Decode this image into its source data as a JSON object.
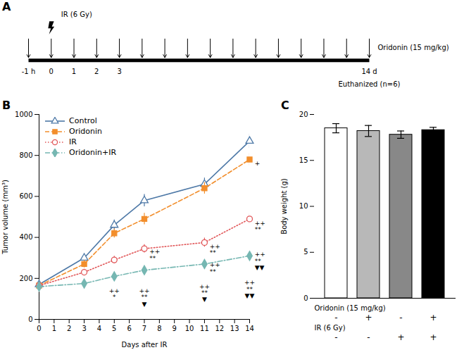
{
  "chart_data": [
    {
      "type": "timeline",
      "title": "A",
      "xlim": [
        -1,
        14
      ],
      "xticks": [
        {
          "value": -1,
          "label": "-1 h"
        },
        0,
        1,
        2,
        3,
        {
          "value": 14,
          "label": "14 d"
        }
      ],
      "series": [
        {
          "name": "Oridonin (15 mg/kg)",
          "marker": "arrow",
          "x": [
            -1,
            0,
            1,
            2,
            3,
            4,
            5,
            6,
            7,
            8,
            9,
            10,
            11,
            12,
            13,
            14
          ]
        },
        {
          "name": "IR (6 Gy)",
          "marker": "bolt",
          "x": [
            0
          ]
        }
      ],
      "annotations": [
        {
          "text": "Euthanized (n=6)",
          "x": 14
        }
      ]
    },
    {
      "type": "line",
      "title": "B",
      "xlabel": "Days after IR",
      "ylabel": "Tumor volume (mm³)",
      "xlim": [
        0,
        14
      ],
      "ylim": [
        0,
        1000
      ],
      "xticks": [
        0,
        1,
        2,
        3,
        4,
        5,
        6,
        7,
        8,
        9,
        10,
        11,
        12,
        13,
        14
      ],
      "yticks": [
        0,
        200,
        400,
        600,
        800,
        1000
      ],
      "x": [
        0,
        3,
        5,
        7,
        11,
        14
      ],
      "series": [
        {
          "name": "Control",
          "marker": "triangle-open",
          "line_style": "solid",
          "values": [
            170,
            300,
            460,
            580,
            660,
            870
          ],
          "errors": [
            10,
            20,
            25,
            30,
            30,
            35
          ]
        },
        {
          "name": "Oridonin",
          "marker": "square",
          "line_style": "dashed",
          "values": [
            165,
            270,
            420,
            490,
            640,
            780
          ],
          "errors": [
            10,
            18,
            22,
            28,
            28,
            30
          ]
        },
        {
          "name": "IR",
          "marker": "circle-open",
          "line_style": "dotted",
          "values": [
            165,
            230,
            290,
            345,
            375,
            490
          ],
          "errors": [
            10,
            15,
            18,
            20,
            22,
            25
          ]
        },
        {
          "name": "Oridonin+IR",
          "marker": "diamond",
          "line_style": "dashdot",
          "values": [
            160,
            175,
            210,
            240,
            270,
            310
          ],
          "errors": [
            10,
            10,
            12,
            15,
            18,
            20
          ]
        }
      ],
      "legend": "upper left",
      "grid": false,
      "annotations": [
        {
          "text": "*",
          "x": 5,
          "y": 143
        },
        {
          "text": "++",
          "x": 5,
          "y": 152
        },
        {
          "text": "▼",
          "x": 7,
          "y": 127
        },
        {
          "text": "**",
          "x": 7,
          "y": 140
        },
        {
          "text": "++",
          "x": 7,
          "y": 153
        },
        {
          "text": "▼",
          "x": 11,
          "y": 148
        },
        {
          "text": "**",
          "x": 11,
          "y": 161
        },
        {
          "text": "++",
          "x": 11,
          "y": 174
        },
        {
          "text": "▼▼",
          "x": 14,
          "y": 163
        },
        {
          "text": "**",
          "x": 14,
          "y": 177
        },
        {
          "text": "++",
          "x": 14,
          "y": 192
        },
        {
          "text": "+",
          "x": 14.15,
          "y": 760
        },
        {
          "text": "++",
          "x": 7.15,
          "y": 322
        },
        {
          "text": "**",
          "x": 7.15,
          "y": 306
        },
        {
          "text": "++",
          "x": 11.15,
          "y": 348
        },
        {
          "text": "**",
          "x": 11.15,
          "y": 333
        },
        {
          "text": "++",
          "x": 14.15,
          "y": 462
        },
        {
          "text": "**",
          "x": 14.15,
          "y": 446
        },
        {
          "text": "++",
          "x": 11.15,
          "y": 257
        },
        {
          "text": "**",
          "x": 11.15,
          "y": 242
        },
        {
          "text": "++",
          "x": 14.15,
          "y": 300
        },
        {
          "text": "**",
          "x": 14.15,
          "y": 284
        },
        {
          "text": "▼▼",
          "x": 14.15,
          "y": 268
        }
      ]
    },
    {
      "type": "bar",
      "title": "C",
      "ylabel": "Body weight (g)",
      "categories": [
        null,
        null,
        null,
        null
      ],
      "values": [
        18.5,
        18.2,
        17.8,
        18.3
      ],
      "errors": [
        0.5,
        0.6,
        0.4,
        0.3
      ],
      "colors": [
        "white",
        "#b8b8b8",
        "#888888",
        "black"
      ],
      "ylim": [
        0,
        20
      ],
      "yticks": [
        0,
        5,
        10,
        15,
        20
      ],
      "tick_labels": "y",
      "table": [
        {
          "label": "Oridonin (15 mg/kg)",
          "values": [
            "-",
            "+",
            "-",
            "+"
          ]
        },
        {
          "label": "IR (6 Gy)",
          "values": [
            "-",
            "-",
            "+",
            "+"
          ]
        }
      ]
    }
  ]
}
